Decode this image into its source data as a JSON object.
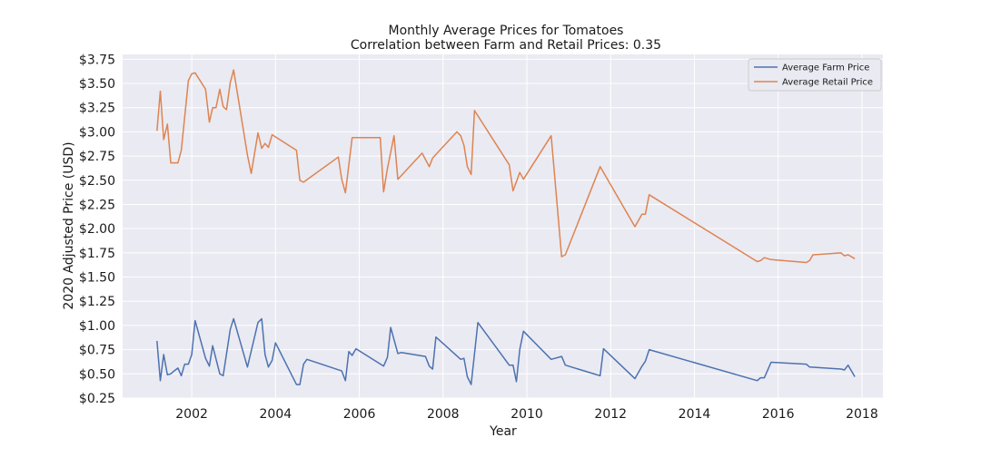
{
  "chart_data": {
    "type": "line",
    "title": "Monthly Average Prices for Tomatoes",
    "subtitle": "Correlation between Farm and Retail Prices: 0.35",
    "xlabel": "Year",
    "ylabel": "2020 Adjusted Price (USD)",
    "xlim": [
      2000.35,
      2018.5
    ],
    "ylim": [
      0.25,
      3.8
    ],
    "grid": true,
    "legend_position": "top-right",
    "x_ticks": [
      {
        "value": 2002,
        "label": "2002"
      },
      {
        "value": 2004,
        "label": "2004"
      },
      {
        "value": 2006,
        "label": "2006"
      },
      {
        "value": 2008,
        "label": "2008"
      },
      {
        "value": 2010,
        "label": "2010"
      },
      {
        "value": 2012,
        "label": "2012"
      },
      {
        "value": 2014,
        "label": "2014"
      },
      {
        "value": 2016,
        "label": "2016"
      },
      {
        "value": 2018,
        "label": "2018"
      }
    ],
    "y_ticks": [
      {
        "value": 0.25,
        "label": "$0.25"
      },
      {
        "value": 0.5,
        "label": "$0.50"
      },
      {
        "value": 0.75,
        "label": "$0.75"
      },
      {
        "value": 1.0,
        "label": "$1.00"
      },
      {
        "value": 1.25,
        "label": "$1.25"
      },
      {
        "value": 1.5,
        "label": "$1.50"
      },
      {
        "value": 1.75,
        "label": "$1.75"
      },
      {
        "value": 2.0,
        "label": "$2.00"
      },
      {
        "value": 2.25,
        "label": "$2.25"
      },
      {
        "value": 2.5,
        "label": "$2.50"
      },
      {
        "value": 2.75,
        "label": "$2.75"
      },
      {
        "value": 3.0,
        "label": "$3.00"
      },
      {
        "value": 3.25,
        "label": "$3.25"
      },
      {
        "value": 3.5,
        "label": "$3.50"
      },
      {
        "value": 3.75,
        "label": "$3.75"
      }
    ],
    "series": [
      {
        "name": "Average Farm Price",
        "color": "#4c72b0",
        "points": [
          [
            2001.17,
            0.84
          ],
          [
            2001.25,
            0.43
          ],
          [
            2001.33,
            0.7
          ],
          [
            2001.42,
            0.49
          ],
          [
            2001.5,
            0.5
          ],
          [
            2001.58,
            0.53
          ],
          [
            2001.67,
            0.56
          ],
          [
            2001.75,
            0.48
          ],
          [
            2001.83,
            0.6
          ],
          [
            2001.92,
            0.6
          ],
          [
            2002.0,
            0.7
          ],
          [
            2002.08,
            1.05
          ],
          [
            2002.33,
            0.66
          ],
          [
            2002.42,
            0.58
          ],
          [
            2002.5,
            0.79
          ],
          [
            2002.67,
            0.5
          ],
          [
            2002.75,
            0.48
          ],
          [
            2002.92,
            0.96
          ],
          [
            2003.0,
            1.07
          ],
          [
            2003.33,
            0.57
          ],
          [
            2003.58,
            1.03
          ],
          [
            2003.67,
            1.07
          ],
          [
            2003.75,
            0.7
          ],
          [
            2003.83,
            0.57
          ],
          [
            2003.92,
            0.64
          ],
          [
            2004.0,
            0.82
          ],
          [
            2004.5,
            0.39
          ],
          [
            2004.58,
            0.39
          ],
          [
            2004.67,
            0.6
          ],
          [
            2004.75,
            0.65
          ],
          [
            2005.58,
            0.53
          ],
          [
            2005.67,
            0.43
          ],
          [
            2005.75,
            0.73
          ],
          [
            2005.83,
            0.69
          ],
          [
            2005.92,
            0.76
          ],
          [
            2006.58,
            0.58
          ],
          [
            2006.67,
            0.67
          ],
          [
            2006.75,
            0.98
          ],
          [
            2006.92,
            0.71
          ],
          [
            2007.0,
            0.72
          ],
          [
            2007.58,
            0.68
          ],
          [
            2007.67,
            0.58
          ],
          [
            2007.75,
            0.55
          ],
          [
            2007.83,
            0.88
          ],
          [
            2008.42,
            0.65
          ],
          [
            2008.5,
            0.66
          ],
          [
            2008.58,
            0.47
          ],
          [
            2008.67,
            0.39
          ],
          [
            2008.83,
            1.03
          ],
          [
            2009.58,
            0.59
          ],
          [
            2009.67,
            0.59
          ],
          [
            2009.75,
            0.42
          ],
          [
            2009.83,
            0.75
          ],
          [
            2009.92,
            0.94
          ],
          [
            2010.58,
            0.65
          ],
          [
            2010.83,
            0.68
          ],
          [
            2010.92,
            0.59
          ],
          [
            2011.75,
            0.48
          ],
          [
            2011.83,
            0.76
          ],
          [
            2012.58,
            0.45
          ],
          [
            2012.75,
            0.58
          ],
          [
            2012.83,
            0.63
          ],
          [
            2012.92,
            0.75
          ],
          [
            2015.5,
            0.43
          ],
          [
            2015.58,
            0.46
          ],
          [
            2015.67,
            0.46
          ],
          [
            2015.83,
            0.62
          ],
          [
            2016.67,
            0.6
          ],
          [
            2016.75,
            0.57
          ],
          [
            2017.5,
            0.55
          ],
          [
            2017.58,
            0.54
          ],
          [
            2017.67,
            0.59
          ],
          [
            2017.83,
            0.47
          ]
        ]
      },
      {
        "name": "Average Retail Price",
        "color": "#dd8452",
        "points": [
          [
            2001.17,
            3.01
          ],
          [
            2001.25,
            3.42
          ],
          [
            2001.33,
            2.92
          ],
          [
            2001.42,
            3.08
          ],
          [
            2001.5,
            2.68
          ],
          [
            2001.58,
            2.68
          ],
          [
            2001.67,
            2.68
          ],
          [
            2001.75,
            2.81
          ],
          [
            2001.92,
            3.53
          ],
          [
            2002.0,
            3.6
          ],
          [
            2002.08,
            3.61
          ],
          [
            2002.33,
            3.44
          ],
          [
            2002.42,
            3.1
          ],
          [
            2002.5,
            3.25
          ],
          [
            2002.58,
            3.25
          ],
          [
            2002.67,
            3.44
          ],
          [
            2002.75,
            3.26
          ],
          [
            2002.83,
            3.23
          ],
          [
            2002.92,
            3.51
          ],
          [
            2003.0,
            3.64
          ],
          [
            2003.33,
            2.76
          ],
          [
            2003.42,
            2.57
          ],
          [
            2003.58,
            2.99
          ],
          [
            2003.67,
            2.83
          ],
          [
            2003.75,
            2.88
          ],
          [
            2003.83,
            2.84
          ],
          [
            2003.92,
            2.97
          ],
          [
            2004.5,
            2.81
          ],
          [
            2004.58,
            2.5
          ],
          [
            2004.67,
            2.48
          ],
          [
            2005.5,
            2.74
          ],
          [
            2005.58,
            2.51
          ],
          [
            2005.67,
            2.37
          ],
          [
            2005.83,
            2.94
          ],
          [
            2006.5,
            2.94
          ],
          [
            2006.58,
            2.38
          ],
          [
            2006.67,
            2.62
          ],
          [
            2006.83,
            2.96
          ],
          [
            2006.92,
            2.51
          ],
          [
            2007.5,
            2.78
          ],
          [
            2007.67,
            2.64
          ],
          [
            2007.75,
            2.73
          ],
          [
            2008.33,
            3.0
          ],
          [
            2008.42,
            2.96
          ],
          [
            2008.5,
            2.86
          ],
          [
            2008.58,
            2.64
          ],
          [
            2008.67,
            2.56
          ],
          [
            2008.75,
            3.22
          ],
          [
            2009.58,
            2.66
          ],
          [
            2009.67,
            2.39
          ],
          [
            2009.83,
            2.58
          ],
          [
            2009.92,
            2.51
          ],
          [
            2010.58,
            2.96
          ],
          [
            2010.83,
            1.71
          ],
          [
            2010.92,
            1.73
          ],
          [
            2011.75,
            2.64
          ],
          [
            2012.58,
            2.02
          ],
          [
            2012.75,
            2.15
          ],
          [
            2012.83,
            2.15
          ],
          [
            2012.92,
            2.35
          ],
          [
            2015.5,
            1.66
          ],
          [
            2015.58,
            1.67
          ],
          [
            2015.67,
            1.7
          ],
          [
            2015.83,
            1.68
          ],
          [
            2016.67,
            1.65
          ],
          [
            2016.75,
            1.67
          ],
          [
            2016.83,
            1.73
          ],
          [
            2017.5,
            1.75
          ],
          [
            2017.58,
            1.72
          ],
          [
            2017.67,
            1.73
          ],
          [
            2017.83,
            1.69
          ]
        ]
      }
    ]
  }
}
